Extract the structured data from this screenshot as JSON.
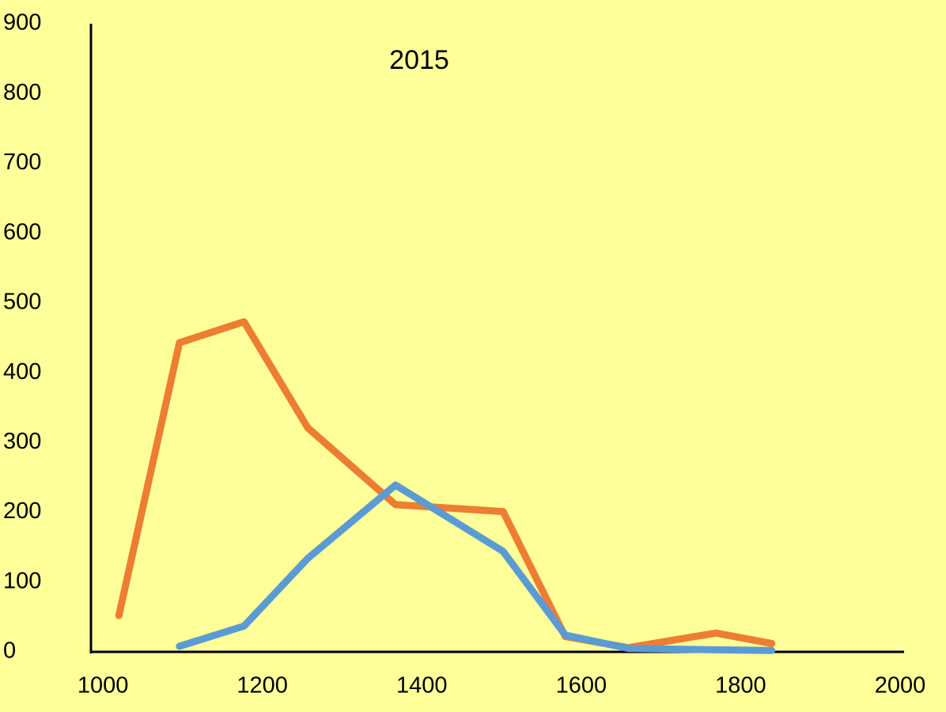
{
  "chart_data": {
    "type": "line",
    "title": "2015",
    "x": [
      1020,
      1096,
      1177,
      1257,
      1367,
      1502,
      1580,
      1659,
      1769,
      1839
    ],
    "series": [
      {
        "name": "orange",
        "color": "#ed7d31",
        "values": [
          52,
          443,
          473,
          321,
          211,
          201,
          22,
          6,
          27,
          12
        ]
      },
      {
        "name": "blue",
        "color": "#5b9bd5",
        "values": [
          null,
          8,
          37,
          134,
          239,
          144,
          24,
          5,
          3,
          2
        ]
      }
    ],
    "xlim": [
      985,
      2005
    ],
    "xticks": [
      1000,
      1200,
      1400,
      1600,
      1800,
      2000
    ],
    "ylim": [
      0,
      900
    ],
    "yticks": [
      0,
      100,
      200,
      300,
      400,
      500,
      600,
      700,
      800,
      900
    ]
  }
}
